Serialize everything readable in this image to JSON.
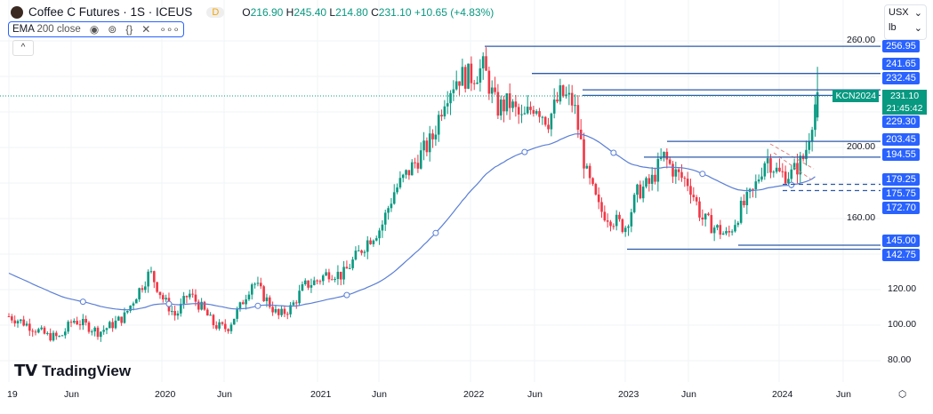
{
  "header": {
    "symbol_title": "Coffee C Futures · 1S · ICEUS",
    "market_status": "D",
    "ohlc": {
      "o_label": "O",
      "o": "216.90",
      "h_label": "H",
      "h": "245.40",
      "l_label": "L",
      "l": "214.80",
      "c_label": "C",
      "c": "231.10",
      "change": "+10.65 (+4.83%)"
    }
  },
  "indicator": {
    "label": "EMA",
    "params": "200 close",
    "icons": [
      "eye-icon",
      "settings-icon",
      "source-code-icon",
      "close-icon",
      "more-icon"
    ]
  },
  "currency": {
    "value": "USX",
    "unit": "lb"
  },
  "price_axis": {
    "ticks": [
      "260.00",
      "200.00",
      "160.00",
      "120.00",
      "100.00",
      "80.00"
    ]
  },
  "levels": [
    {
      "price": 256.95,
      "label": "256.95",
      "style": "solid"
    },
    {
      "price": 241.65,
      "label": "241.65",
      "style": "solid"
    },
    {
      "price": 232.45,
      "label": "232.45",
      "style": "solid"
    },
    {
      "price": 229.3,
      "label": "229.30",
      "style": "solid"
    },
    {
      "price": 203.45,
      "label": "203.45",
      "style": "solid"
    },
    {
      "price": 194.55,
      "label": "194.55",
      "style": "solid"
    },
    {
      "price": 179.25,
      "label": "179.25",
      "style": "dashed"
    },
    {
      "price": 175.75,
      "label": "175.75",
      "style": "dashed"
    },
    {
      "price": 172.7,
      "label": "172.70",
      "style": "solid"
    },
    {
      "price": 145.0,
      "label": "145.00",
      "style": "solid"
    },
    {
      "price": 142.75,
      "label": "142.75",
      "style": "solid"
    }
  ],
  "last_price": {
    "symbol": "KCN2024",
    "price": "231.10",
    "countdown": "21:45:42",
    "color": "#089981"
  },
  "time_axis": [
    "19",
    "Jun",
    "2020",
    "Jun",
    "2021",
    "Jun",
    "2022",
    "Jun",
    "2023",
    "Jun",
    "2024",
    "Jun"
  ],
  "brand": "TradingView",
  "colors": {
    "up": "#089981",
    "down": "#f23645",
    "ema": "#5b7fd6",
    "level": "#2962ff"
  },
  "chart_data": {
    "type": "candlestick",
    "interval": "weekly",
    "start": "2019-01",
    "monthly_close": [
      105,
      102,
      98,
      94,
      93,
      103,
      100,
      96,
      100,
      105,
      118,
      130,
      115,
      105,
      118,
      110,
      100,
      98,
      110,
      125,
      115,
      105,
      110,
      122,
      125,
      130,
      128,
      138,
      148,
      155,
      175,
      185,
      195,
      205,
      230,
      240,
      240,
      245,
      222,
      225,
      215,
      225,
      215,
      230,
      225,
      185,
      165,
      160,
      155,
      175,
      180,
      195,
      185,
      180,
      160,
      155,
      150,
      165,
      175,
      195,
      185,
      185,
      195,
      231.1
    ],
    "ema_period": 200
  }
}
